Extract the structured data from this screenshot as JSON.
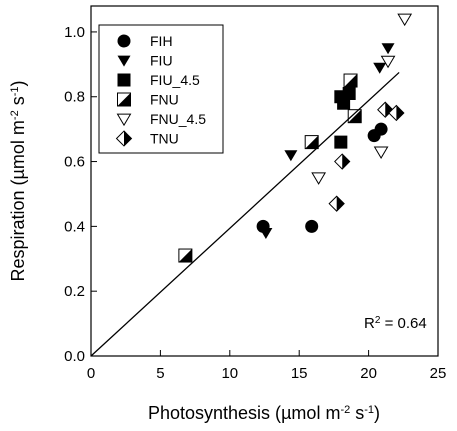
{
  "chart_data": {
    "type": "scatter",
    "xlabel_main": "Photosynthesis (",
    "xlabel_unit": "µmol m",
    "xlabel_exp1": "-2",
    "xlabel_s": " s",
    "xlabel_exp2": "-1",
    "xlabel_close": ")",
    "ylabel_main": "Respiration (",
    "ylabel_unit": "µmol m",
    "ylabel_exp1": "-2",
    "ylabel_s": " s",
    "ylabel_exp2": "-1",
    "ylabel_close": ")",
    "xlim": [
      0,
      25
    ],
    "ylim": [
      0,
      1.08
    ],
    "xticks": [
      0,
      5,
      10,
      15,
      20,
      25
    ],
    "yticks": [
      0.0,
      0.2,
      0.4,
      0.6,
      0.8,
      1.0
    ],
    "xtick_labels": [
      "0",
      "5",
      "10",
      "15",
      "20",
      "25"
    ],
    "ytick_labels": [
      "0.0",
      "0.2",
      "0.4",
      "0.6",
      "0.8",
      "1.0"
    ],
    "grid": false,
    "legend_position": "top-left",
    "annotation": {
      "text_main": "R",
      "text_exp": "2",
      "text_rest": " = 0.64"
    },
    "regression": {
      "x": [
        0,
        22.2
      ],
      "y": [
        0,
        0.875
      ]
    },
    "series": [
      {
        "name": "FIH",
        "marker": "circle",
        "points": [
          [
            12.4,
            0.4
          ],
          [
            15.9,
            0.4
          ],
          [
            20.4,
            0.68
          ],
          [
            20.9,
            0.7
          ]
        ]
      },
      {
        "name": "FIU",
        "marker": "triangle-down",
        "points": [
          [
            12.6,
            0.38
          ],
          [
            14.4,
            0.62
          ],
          [
            20.8,
            0.89
          ],
          [
            21.4,
            0.95
          ]
        ]
      },
      {
        "name": "FIU_4.5",
        "marker": "square",
        "points": [
          [
            18.0,
            0.66
          ],
          [
            18.0,
            0.8
          ],
          [
            18.2,
            0.78
          ],
          [
            18.6,
            0.81
          ]
        ]
      },
      {
        "name": "FNU",
        "marker": "square-half",
        "points": [
          [
            6.8,
            0.31
          ],
          [
            15.9,
            0.66
          ],
          [
            18.7,
            0.85
          ],
          [
            19.0,
            0.74
          ]
        ]
      },
      {
        "name": "FNU_4.5",
        "marker": "triangle-down-open",
        "points": [
          [
            16.4,
            0.55
          ],
          [
            20.9,
            0.63
          ],
          [
            21.4,
            0.91
          ],
          [
            22.6,
            1.04
          ]
        ]
      },
      {
        "name": "TNU",
        "marker": "diamond-half",
        "points": [
          [
            17.7,
            0.47
          ],
          [
            18.1,
            0.6
          ],
          [
            21.2,
            0.76
          ],
          [
            22.0,
            0.75
          ]
        ]
      }
    ]
  }
}
